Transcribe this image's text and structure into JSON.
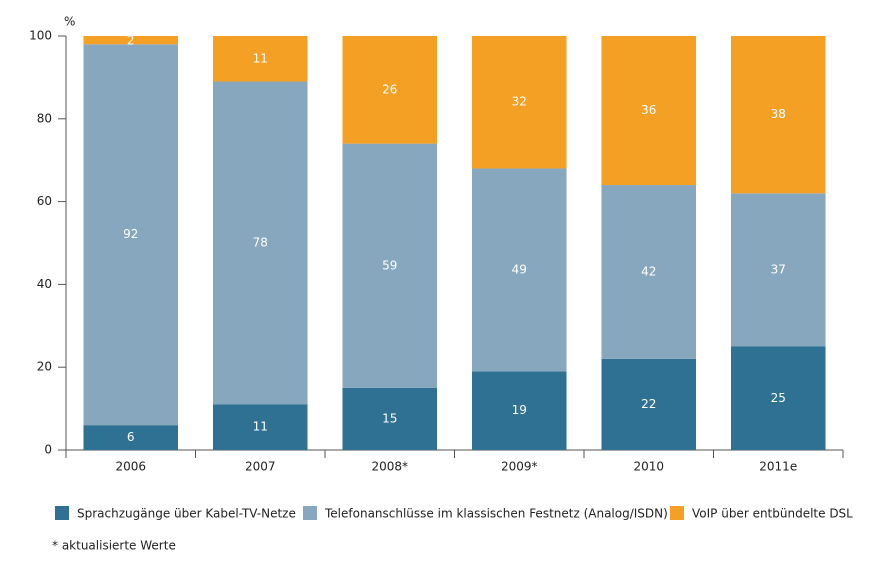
{
  "chart_data": {
    "type": "stacked_bar",
    "y_unit": "%",
    "categories": [
      "2006",
      "2007",
      "2008*",
      "2009*",
      "2010",
      "2011e"
    ],
    "series": [
      {
        "name": "Sprachzugänge über Kabel-TV-Netze",
        "color": "#2e7192",
        "values": [
          6,
          11,
          15,
          19,
          22,
          25
        ]
      },
      {
        "name": "Telefonanschlüsse im klassischen Festnetz (Analog/ISDN)",
        "color": "#87a7bf",
        "values": [
          92,
          78,
          59,
          49,
          42,
          37
        ]
      },
      {
        "name": "VoIP über entbündelte DSL",
        "color": "#f4a025",
        "values": [
          2,
          11,
          26,
          32,
          36,
          38
        ]
      }
    ],
    "ylim": [
      0,
      100
    ],
    "yticks": [
      0,
      20,
      40,
      60,
      80,
      100
    ],
    "footnote": "* aktualisierte Werte"
  }
}
